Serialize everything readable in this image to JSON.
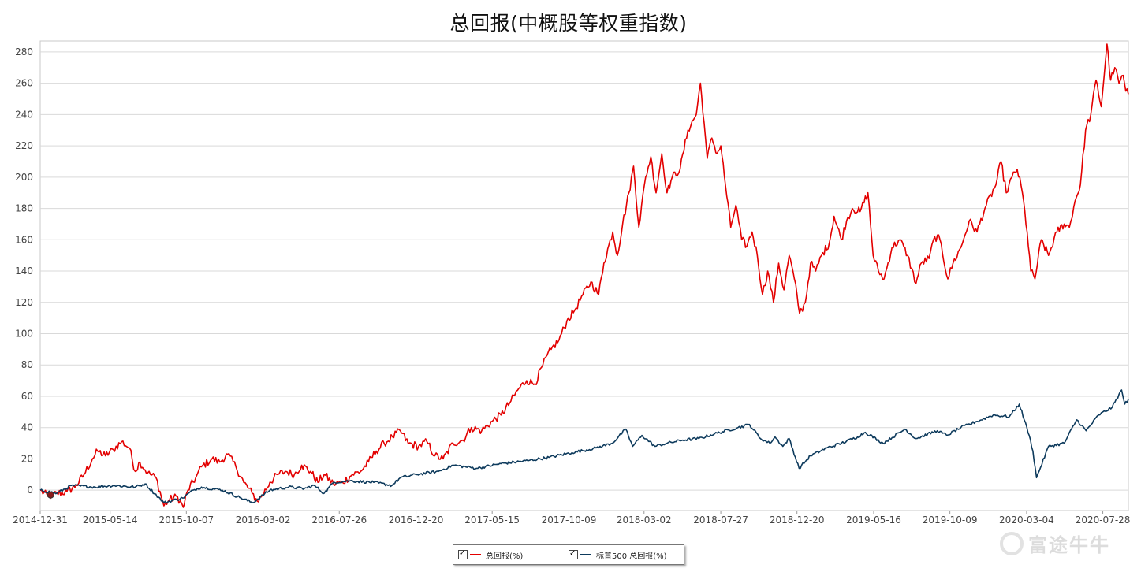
{
  "chart_data": {
    "type": "line",
    "title": "总回报(中概股等权重指数)",
    "x_ticks": [
      "2014-12-31",
      "2015-05-14",
      "2015-10-07",
      "2016-03-02",
      "2016-07-26",
      "2016-12-20",
      "2017-05-15",
      "2017-10-09",
      "2018-03-02",
      "2018-07-27",
      "2018-12-20",
      "2019-05-16",
      "2019-10-09",
      "2020-03-04",
      "2020-07-28"
    ],
    "x_range": [
      "2014-12-31",
      "2020-09-15"
    ],
    "y_ticks": [
      0,
      20,
      40,
      60,
      80,
      100,
      120,
      140,
      160,
      180,
      200,
      220,
      240,
      260,
      280
    ],
    "ylim": [
      -13,
      287
    ],
    "grid": true,
    "legend_position": "bottom-center",
    "series": [
      {
        "name": "总回报(%)",
        "color": "#e30000",
        "points": [
          [
            "2014-12-31",
            0
          ],
          [
            "2015-01-15",
            -4
          ],
          [
            "2015-02-01",
            -2
          ],
          [
            "2015-02-20",
            -1
          ],
          [
            "2015-03-10",
            3
          ],
          [
            "2015-03-25",
            10
          ],
          [
            "2015-04-10",
            20
          ],
          [
            "2015-04-20",
            25
          ],
          [
            "2015-05-05",
            22
          ],
          [
            "2015-05-20",
            26
          ],
          [
            "2015-06-05",
            31
          ],
          [
            "2015-06-20",
            27
          ],
          [
            "2015-07-01",
            12
          ],
          [
            "2015-07-10",
            18
          ],
          [
            "2015-07-25",
            11
          ],
          [
            "2015-08-10",
            8
          ],
          [
            "2015-08-25",
            -10
          ],
          [
            "2015-09-05",
            -6
          ],
          [
            "2015-09-20",
            -4
          ],
          [
            "2015-10-01",
            -11
          ],
          [
            "2015-10-10",
            0
          ],
          [
            "2015-10-25",
            8
          ],
          [
            "2015-11-05",
            15
          ],
          [
            "2015-11-25",
            20
          ],
          [
            "2015-12-10",
            18
          ],
          [
            "2015-12-25",
            23
          ],
          [
            "2016-01-10",
            15
          ],
          [
            "2016-01-25",
            5
          ],
          [
            "2016-02-10",
            -2
          ],
          [
            "2016-02-20",
            -7
          ],
          [
            "2016-03-01",
            -3
          ],
          [
            "2016-03-15",
            5
          ],
          [
            "2016-03-30",
            10
          ],
          [
            "2016-04-15",
            12
          ],
          [
            "2016-05-01",
            10
          ],
          [
            "2016-05-15",
            16
          ],
          [
            "2016-06-01",
            12
          ],
          [
            "2016-06-15",
            5
          ],
          [
            "2016-06-27",
            10
          ],
          [
            "2016-07-15",
            4
          ],
          [
            "2016-08-01",
            5
          ],
          [
            "2016-08-20",
            10
          ],
          [
            "2016-09-05",
            12
          ],
          [
            "2016-09-20",
            18
          ],
          [
            "2016-10-05",
            25
          ],
          [
            "2016-10-20",
            30
          ],
          [
            "2016-11-05",
            34
          ],
          [
            "2016-11-20",
            38
          ],
          [
            "2016-12-05",
            30
          ],
          [
            "2016-12-25",
            28
          ],
          [
            "2017-01-10",
            31
          ],
          [
            "2017-01-25",
            22
          ],
          [
            "2017-02-10",
            20
          ],
          [
            "2017-03-01",
            30
          ],
          [
            "2017-03-20",
            32
          ],
          [
            "2017-04-05",
            40
          ],
          [
            "2017-04-25",
            38
          ],
          [
            "2017-05-15",
            44
          ],
          [
            "2017-06-01",
            48
          ],
          [
            "2017-06-20",
            57
          ],
          [
            "2017-07-05",
            65
          ],
          [
            "2017-07-20",
            70
          ],
          [
            "2017-08-05",
            68
          ],
          [
            "2017-08-20",
            80
          ],
          [
            "2017-09-05",
            90
          ],
          [
            "2017-09-20",
            96
          ],
          [
            "2017-10-05",
            108
          ],
          [
            "2017-10-20",
            115
          ],
          [
            "2017-11-05",
            125
          ],
          [
            "2017-11-20",
            133
          ],
          [
            "2017-12-05",
            125
          ],
          [
            "2017-12-15",
            145
          ],
          [
            "2018-01-01",
            165
          ],
          [
            "2018-01-10",
            150
          ],
          [
            "2018-01-20",
            170
          ],
          [
            "2018-02-01",
            190
          ],
          [
            "2018-02-10",
            207
          ],
          [
            "2018-02-20",
            168
          ],
          [
            "2018-03-05",
            200
          ],
          [
            "2018-03-15",
            213
          ],
          [
            "2018-03-25",
            190
          ],
          [
            "2018-04-05",
            215
          ],
          [
            "2018-04-15",
            190
          ],
          [
            "2018-04-25",
            200
          ],
          [
            "2018-05-10",
            205
          ],
          [
            "2018-05-25",
            230
          ],
          [
            "2018-06-10",
            240
          ],
          [
            "2018-06-18",
            260
          ],
          [
            "2018-06-25",
            235
          ],
          [
            "2018-07-01",
            212
          ],
          [
            "2018-07-10",
            225
          ],
          [
            "2018-07-20",
            215
          ],
          [
            "2018-07-27",
            220
          ],
          [
            "2018-08-05",
            195
          ],
          [
            "2018-08-15",
            168
          ],
          [
            "2018-08-25",
            182
          ],
          [
            "2018-09-05",
            160
          ],
          [
            "2018-09-15",
            156
          ],
          [
            "2018-09-25",
            165
          ],
          [
            "2018-10-05",
            150
          ],
          [
            "2018-10-15",
            125
          ],
          [
            "2018-10-25",
            140
          ],
          [
            "2018-11-05",
            120
          ],
          [
            "2018-11-15",
            145
          ],
          [
            "2018-11-25",
            128
          ],
          [
            "2018-12-05",
            150
          ],
          [
            "2018-12-15",
            135
          ],
          [
            "2018-12-25",
            113
          ],
          [
            "2019-01-05",
            120
          ],
          [
            "2019-01-15",
            145
          ],
          [
            "2019-01-25",
            140
          ],
          [
            "2019-02-05",
            150
          ],
          [
            "2019-02-20",
            158
          ],
          [
            "2019-03-01",
            175
          ],
          [
            "2019-03-15",
            160
          ],
          [
            "2019-03-25",
            172
          ],
          [
            "2019-04-05",
            180
          ],
          [
            "2019-04-20",
            178
          ],
          [
            "2019-05-05",
            190
          ],
          [
            "2019-05-15",
            150
          ],
          [
            "2019-05-25",
            140
          ],
          [
            "2019-06-05",
            135
          ],
          [
            "2019-06-20",
            155
          ],
          [
            "2019-07-05",
            160
          ],
          [
            "2019-07-20",
            150
          ],
          [
            "2019-08-05",
            132
          ],
          [
            "2019-08-15",
            145
          ],
          [
            "2019-08-30",
            148
          ],
          [
            "2019-09-10",
            162
          ],
          [
            "2019-09-20",
            160
          ],
          [
            "2019-10-05",
            135
          ],
          [
            "2019-10-15",
            145
          ],
          [
            "2019-10-30",
            155
          ],
          [
            "2019-11-15",
            172
          ],
          [
            "2019-11-30",
            165
          ],
          [
            "2019-12-15",
            180
          ],
          [
            "2020-01-05",
            195
          ],
          [
            "2020-01-15",
            210
          ],
          [
            "2020-01-25",
            190
          ],
          [
            "2020-02-05",
            200
          ],
          [
            "2020-02-15",
            205
          ],
          [
            "2020-02-25",
            190
          ],
          [
            "2020-03-05",
            165
          ],
          [
            "2020-03-12",
            140
          ],
          [
            "2020-03-20",
            135
          ],
          [
            "2020-04-01",
            160
          ],
          [
            "2020-04-15",
            150
          ],
          [
            "2020-05-01",
            165
          ],
          [
            "2020-05-15",
            170
          ],
          [
            "2020-05-25",
            168
          ],
          [
            "2020-06-05",
            185
          ],
          [
            "2020-06-15",
            195
          ],
          [
            "2020-06-25",
            230
          ],
          [
            "2020-07-05",
            240
          ],
          [
            "2020-07-15",
            262
          ],
          [
            "2020-07-25",
            245
          ],
          [
            "2020-08-05",
            285
          ],
          [
            "2020-08-12",
            262
          ],
          [
            "2020-08-20",
            270
          ],
          [
            "2020-08-28",
            260
          ],
          [
            "2020-09-05",
            265
          ],
          [
            "2020-09-10",
            255
          ],
          [
            "2020-09-15",
            253
          ]
        ]
      },
      {
        "name": "标普500 总回报(%)",
        "color": "#0d3a5c",
        "points": [
          [
            "2014-12-31",
            0
          ],
          [
            "2015-02-01",
            -2
          ],
          [
            "2015-03-01",
            3
          ],
          [
            "2015-04-15",
            2
          ],
          [
            "2015-05-20",
            3
          ],
          [
            "2015-07-01",
            2
          ],
          [
            "2015-07-20",
            4
          ],
          [
            "2015-08-25",
            -8
          ],
          [
            "2015-09-30",
            -5
          ],
          [
            "2015-10-20",
            0
          ],
          [
            "2015-11-05",
            2
          ],
          [
            "2015-12-15",
            0
          ],
          [
            "2016-01-20",
            -5
          ],
          [
            "2016-02-11",
            -8
          ],
          [
            "2016-03-15",
            0
          ],
          [
            "2016-04-20",
            2
          ],
          [
            "2016-05-20",
            1
          ],
          [
            "2016-06-08",
            3
          ],
          [
            "2016-06-27",
            -2
          ],
          [
            "2016-07-15",
            5
          ],
          [
            "2016-08-15",
            6
          ],
          [
            "2016-09-30",
            5
          ],
          [
            "2016-11-04",
            3
          ],
          [
            "2016-11-20",
            8
          ],
          [
            "2016-12-20",
            10
          ],
          [
            "2017-02-01",
            12
          ],
          [
            "2017-03-01",
            16
          ],
          [
            "2017-04-15",
            14
          ],
          [
            "2017-06-01",
            17
          ],
          [
            "2017-07-25",
            19
          ],
          [
            "2017-09-01",
            21
          ],
          [
            "2017-10-15",
            24
          ],
          [
            "2017-11-30",
            27
          ],
          [
            "2017-12-31",
            30
          ],
          [
            "2018-01-26",
            39
          ],
          [
            "2018-02-08",
            28
          ],
          [
            "2018-02-26",
            35
          ],
          [
            "2018-03-23",
            28
          ],
          [
            "2018-04-15",
            30
          ],
          [
            "2018-05-15",
            32
          ],
          [
            "2018-06-15",
            33
          ],
          [
            "2018-07-15",
            36
          ],
          [
            "2018-08-29",
            40
          ],
          [
            "2018-09-20",
            42
          ],
          [
            "2018-10-11",
            33
          ],
          [
            "2018-10-29",
            30
          ],
          [
            "2018-11-08",
            34
          ],
          [
            "2018-11-23",
            28
          ],
          [
            "2018-12-05",
            33
          ],
          [
            "2018-12-24",
            14
          ],
          [
            "2019-01-15",
            22
          ],
          [
            "2019-02-15",
            27
          ],
          [
            "2019-03-15",
            30
          ],
          [
            "2019-04-15",
            34
          ],
          [
            "2019-04-30",
            37
          ],
          [
            "2019-06-03",
            30
          ],
          [
            "2019-07-15",
            39
          ],
          [
            "2019-08-05",
            33
          ],
          [
            "2019-09-15",
            38
          ],
          [
            "2019-10-03",
            35
          ],
          [
            "2019-10-30",
            40
          ],
          [
            "2019-11-30",
            44
          ],
          [
            "2019-12-31",
            48
          ],
          [
            "2020-01-31",
            47
          ],
          [
            "2020-02-19",
            55
          ],
          [
            "2020-03-09",
            35
          ],
          [
            "2020-03-16",
            25
          ],
          [
            "2020-03-23",
            8
          ],
          [
            "2020-04-15",
            28
          ],
          [
            "2020-05-15",
            30
          ],
          [
            "2020-06-08",
            45
          ],
          [
            "2020-06-26",
            38
          ],
          [
            "2020-07-20",
            48
          ],
          [
            "2020-08-15",
            53
          ],
          [
            "2020-09-02",
            64
          ],
          [
            "2020-09-08",
            55
          ],
          [
            "2020-09-15",
            58
          ]
        ]
      }
    ]
  },
  "legend": {
    "items": [
      {
        "label": "总回报(%)",
        "color": "#e30000"
      },
      {
        "label": "标普500 总回报(%)",
        "color": "#0d3a5c"
      }
    ]
  },
  "watermark": {
    "text": "富途牛牛"
  }
}
